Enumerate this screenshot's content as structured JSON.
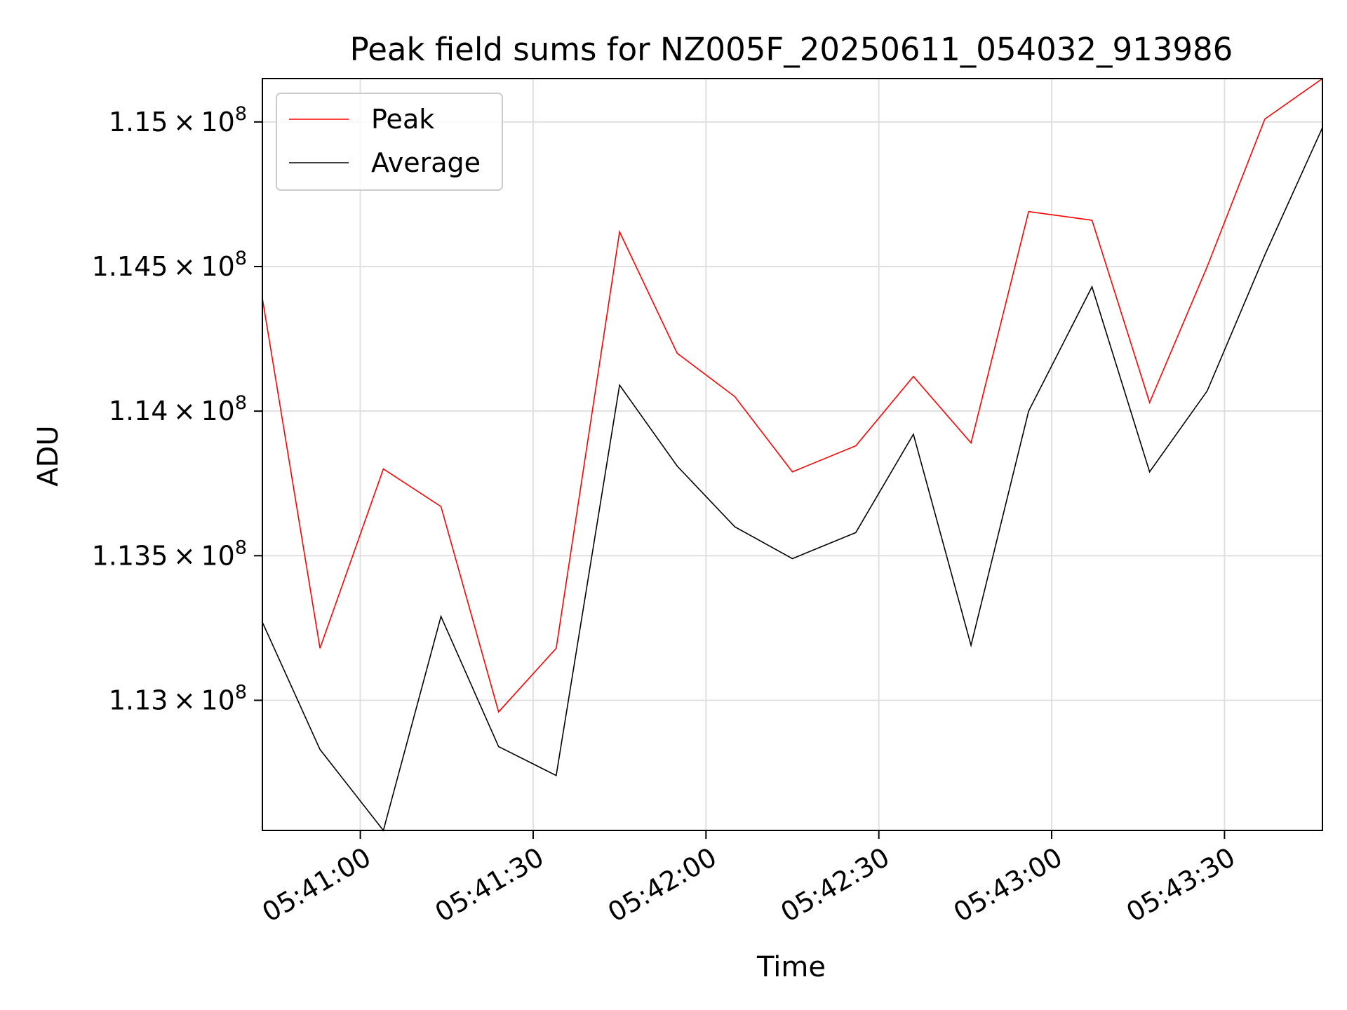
{
  "chart_data": {
    "type": "line",
    "title": "Peak field sums for NZ005F_20250611_054032_913986",
    "xlabel": "Time",
    "ylabel": "ADU",
    "x_ticks": [
      "05:41:00",
      "05:41:30",
      "05:42:00",
      "05:42:30",
      "05:43:00",
      "05:43:30"
    ],
    "y_ticks": [
      {
        "value": 113000000,
        "mantissa": "1.13",
        "base": "10",
        "exp": "8"
      },
      {
        "value": 113500000,
        "mantissa": "1.135",
        "base": "10",
        "exp": "8"
      },
      {
        "value": 114000000,
        "mantissa": "1.14",
        "base": "10",
        "exp": "8"
      },
      {
        "value": 114500000,
        "mantissa": "1.145",
        "base": "10",
        "exp": "8"
      },
      {
        "value": 115000000,
        "mantissa": "1.15",
        "base": "10",
        "exp": "8"
      }
    ],
    "xlim": [
      "05:40:43",
      "05:43:47"
    ],
    "ylim": [
      112550000,
      115150000
    ],
    "grid": true,
    "legend_position": "upper-left",
    "x": [
      "05:40:43",
      "05:40:53",
      "05:41:04",
      "05:41:14",
      "05:41:24",
      "05:41:34",
      "05:41:45",
      "05:41:55",
      "05:42:05",
      "05:42:15",
      "05:42:26",
      "05:42:36",
      "05:42:46",
      "05:42:56",
      "05:43:07",
      "05:43:17",
      "05:43:27",
      "05:43:37",
      "05:43:47"
    ],
    "series": [
      {
        "name": "Peak",
        "color": "#ff0000",
        "values": [
          114390000,
          113180000,
          113800000,
          113670000,
          112960000,
          113180000,
          114620000,
          114200000,
          114050000,
          113790000,
          113880000,
          114120000,
          113890000,
          114690000,
          114660000,
          114030000,
          114500000,
          115010000,
          115150000
        ]
      },
      {
        "name": "Average",
        "color": "#000000",
        "values": [
          113270000,
          112830000,
          112550000,
          113290000,
          112840000,
          112740000,
          114090000,
          113810000,
          113600000,
          113490000,
          113580000,
          113920000,
          113190000,
          114000000,
          114430000,
          113790000,
          114070000,
          114540000,
          114980000
        ]
      }
    ]
  }
}
